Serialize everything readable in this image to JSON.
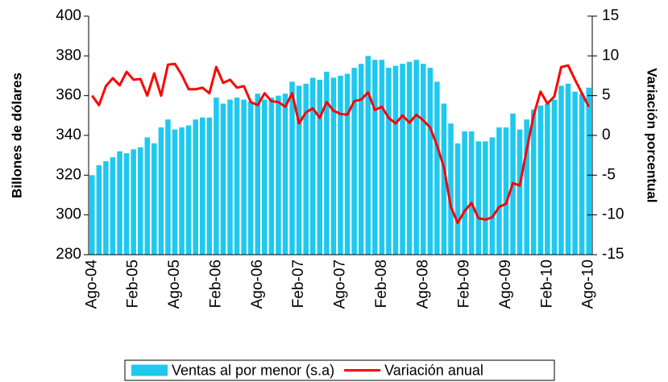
{
  "chart_data": {
    "type": "bar",
    "categories": [
      "Ago-04",
      null,
      null,
      null,
      null,
      null,
      "Feb-05",
      null,
      null,
      null,
      null,
      null,
      "Ago-05",
      null,
      null,
      null,
      null,
      null,
      "Feb-06",
      null,
      null,
      null,
      null,
      null,
      "Ago-06",
      null,
      null,
      null,
      null,
      null,
      "Feb-07",
      null,
      null,
      null,
      null,
      null,
      "Ago-07",
      null,
      null,
      null,
      null,
      null,
      "Feb-08",
      null,
      null,
      null,
      null,
      null,
      "Ago-08",
      null,
      null,
      null,
      null,
      null,
      "Feb-09",
      null,
      null,
      null,
      null,
      null,
      "Ago-09",
      null,
      null,
      null,
      null,
      null,
      "Feb-10",
      null,
      null,
      null,
      null,
      null,
      "Ago-10"
    ],
    "series": [
      {
        "name": "Ventas al por menor (s.a)",
        "type": "bar",
        "color": "#1ec8ef",
        "values": [
          320,
          325,
          327,
          329,
          332,
          331,
          333,
          334,
          339,
          336,
          344,
          348,
          343,
          344,
          345,
          348,
          349,
          349,
          359,
          356,
          358,
          359,
          358,
          357,
          361,
          358,
          359,
          360,
          361,
          367,
          365,
          366,
          369,
          368,
          372,
          369,
          370,
          371,
          374,
          376,
          380,
          378,
          378,
          374,
          375,
          376,
          377,
          378,
          376,
          374,
          367,
          356,
          346,
          336,
          342,
          342,
          337,
          337,
          339,
          344,
          344,
          351,
          343,
          348,
          353,
          355,
          356,
          358,
          365,
          366,
          362,
          361,
          364
        ]
      },
      {
        "name": "Variación anual",
        "type": "line",
        "axis": "y2",
        "color": "#ff0000",
        "values": [
          5.0,
          3.8,
          6.2,
          7.2,
          6.3,
          8.0,
          7.0,
          7.1,
          5.0,
          7.8,
          5.0,
          8.9,
          9.0,
          7.6,
          5.8,
          5.8,
          6.0,
          5.3,
          8.6,
          6.6,
          7.0,
          6.0,
          6.2,
          4.2,
          3.8,
          5.3,
          4.3,
          4.2,
          3.6,
          5.3,
          1.5,
          2.9,
          3.4,
          2.2,
          4.2,
          3.1,
          2.7,
          2.6,
          4.3,
          4.5,
          5.4,
          3.2,
          3.6,
          2.2,
          1.5,
          2.5,
          1.6,
          2.6,
          1.9,
          1.0,
          -1.3,
          -4.0,
          -9.0,
          -11.0,
          -9.5,
          -8.5,
          -10.4,
          -10.6,
          -10.3,
          -9.0,
          -8.6,
          -6.0,
          -6.3,
          -1.8,
          2.5,
          5.5,
          4.0,
          4.9,
          8.6,
          8.8,
          7.0,
          5.3,
          3.6
        ]
      }
    ],
    "ylabel": "Billones de dólares",
    "y2label": "Variación porcentual",
    "ylim": [
      280,
      400
    ],
    "yticks": [
      280,
      300,
      320,
      340,
      360,
      380,
      400
    ],
    "y2lim": [
      -15,
      15
    ],
    "y2ticks": [
      -15,
      -10,
      -5,
      0,
      5,
      10,
      15
    ],
    "legend": "bottom"
  }
}
